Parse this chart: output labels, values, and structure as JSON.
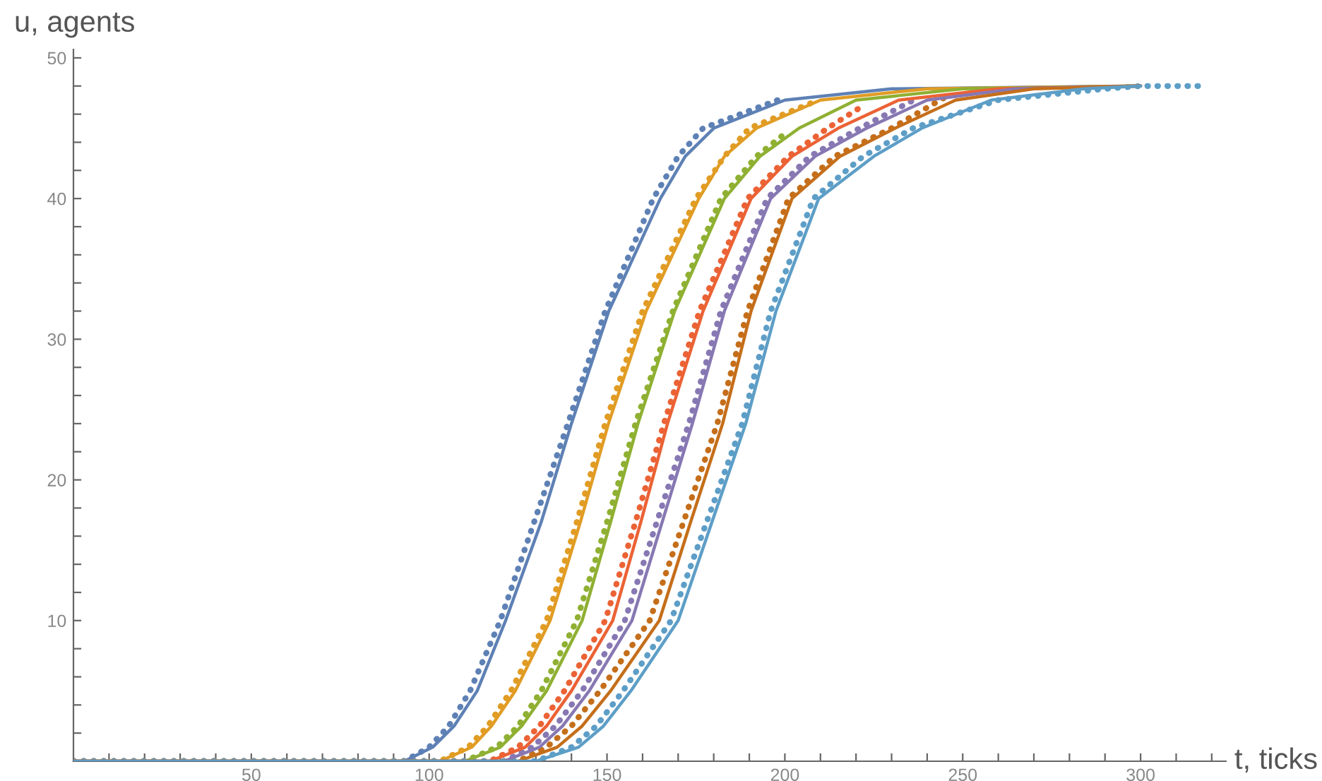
{
  "chart_data": {
    "type": "line",
    "xlabel": "t, ticks",
    "ylabel": "u, agents",
    "xlim": [
      0,
      324
    ],
    "ylim": [
      0,
      50.6
    ],
    "xticks": [
      {
        "value": 10,
        "label": null
      },
      {
        "value": 20,
        "label": null
      },
      {
        "value": 30,
        "label": null
      },
      {
        "value": 40,
        "label": null
      },
      50,
      {
        "value": 60,
        "label": null
      },
      {
        "value": 70,
        "label": null
      },
      {
        "value": 80,
        "label": null
      },
      {
        "value": 90,
        "label": null
      },
      100,
      {
        "value": 110,
        "label": null
      },
      {
        "value": 120,
        "label": null
      },
      {
        "value": 130,
        "label": null
      },
      {
        "value": 140,
        "label": null
      },
      150,
      {
        "value": 160,
        "label": null
      },
      {
        "value": 170,
        "label": null
      },
      {
        "value": 180,
        "label": null
      },
      {
        "value": 190,
        "label": null
      },
      200,
      {
        "value": 210,
        "label": null
      },
      {
        "value": 220,
        "label": null
      },
      {
        "value": 230,
        "label": null
      },
      {
        "value": 240,
        "label": null
      },
      250,
      {
        "value": 260,
        "label": null
      },
      {
        "value": 270,
        "label": null
      },
      {
        "value": 280,
        "label": null
      },
      {
        "value": 290,
        "label": null
      },
      300,
      {
        "value": 310,
        "label": null
      },
      {
        "value": 320,
        "label": null
      }
    ],
    "yticks": [
      {
        "value": 2,
        "label": null
      },
      {
        "value": 4,
        "label": null
      },
      {
        "value": 6,
        "label": null
      },
      {
        "value": 8,
        "label": null
      },
      10,
      {
        "value": 12,
        "label": null
      },
      {
        "value": 14,
        "label": null
      },
      {
        "value": 16,
        "label": null
      },
      {
        "value": 18,
        "label": null
      },
      20,
      {
        "value": 22,
        "label": null
      },
      {
        "value": 24,
        "label": null
      },
      {
        "value": 26,
        "label": null
      },
      {
        "value": 28,
        "label": null
      },
      30,
      {
        "value": 32,
        "label": null
      },
      {
        "value": 34,
        "label": null
      },
      {
        "value": 36,
        "label": null
      },
      {
        "value": 38,
        "label": null
      },
      40,
      {
        "value": 42,
        "label": null
      },
      {
        "value": 44,
        "label": null
      },
      {
        "value": 46,
        "label": null
      },
      {
        "value": 48,
        "label": null
      },
      50
    ],
    "grid": false,
    "legend": false,
    "series": [
      {
        "line_style": "dotted",
        "color": "#5e81b5",
        "x": [
          0,
          93,
          100,
          105.5,
          111.5,
          120,
          129.5,
          139,
          149.5,
          163,
          170,
          177,
          198
        ],
        "values": [
          0,
          0,
          1,
          2.5,
          5,
          10,
          17,
          24,
          32,
          40,
          43,
          45,
          47
        ]
      },
      {
        "line_style": "dotted",
        "color": "#e19c24",
        "x": [
          0,
          103,
          111,
          116.5,
          123,
          133,
          141.5,
          149.5,
          160,
          175,
          183,
          190,
          207.5
        ],
        "values": [
          0,
          0,
          1,
          2.5,
          5,
          10,
          17,
          24,
          32,
          40,
          43,
          45,
          46.8
        ]
      },
      {
        "line_style": "dotted",
        "color": "#8fb032",
        "x": [
          0,
          110,
          119,
          125,
          131.5,
          141.5,
          150,
          158,
          168.5,
          182,
          192,
          200.4
        ],
        "values": [
          0,
          0,
          1,
          2.5,
          5,
          10,
          17,
          24,
          32,
          40,
          43,
          44.7
        ]
      },
      {
        "line_style": "dotted",
        "color": "#eb6235",
        "x": [
          0,
          117,
          125,
          131,
          138,
          149.5,
          158,
          166,
          176,
          189.5,
          201,
          212,
          222
        ],
        "values": [
          0,
          0,
          1,
          2.5,
          5,
          10,
          17,
          24,
          32,
          40,
          43,
          45,
          46.6
        ]
      },
      {
        "line_style": "dotted",
        "color": "#8778b3",
        "x": [
          0,
          121,
          129,
          135.5,
          143,
          155,
          164,
          173,
          182,
          195,
          207,
          221,
          237
        ],
        "values": [
          0,
          0,
          1,
          2.5,
          5,
          10,
          17,
          24,
          32,
          40,
          43,
          45,
          47.1
        ]
      },
      {
        "line_style": "dotted",
        "color": "#c56e1a",
        "x": [
          0,
          125,
          133,
          140,
          148,
          162,
          171.5,
          181,
          189.5,
          201,
          214,
          230,
          245
        ],
        "values": [
          0,
          0,
          1,
          2.5,
          5,
          10,
          17,
          24,
          32,
          40,
          43,
          45,
          47.2
        ]
      },
      {
        "line_style": "dotted",
        "color": "#5d9ec7",
        "x": [
          0,
          130,
          140,
          147,
          154.5,
          168,
          178,
          188,
          196,
          208,
          222,
          236,
          260,
          290,
          300,
          318
        ],
        "values": [
          0,
          0,
          1,
          2.5,
          5,
          10,
          17,
          24,
          32,
          40,
          43,
          45,
          47,
          47.8,
          48,
          48
        ]
      },
      {
        "line_style": "solid",
        "color": "#5e81b5",
        "x": [
          0,
          93,
          101,
          107,
          113.5,
          121.5,
          131.5,
          140,
          150.5,
          165,
          172,
          180,
          200,
          230,
          300
        ],
        "values": [
          0,
          0,
          1,
          2.5,
          5,
          10,
          17,
          24,
          32,
          40,
          43,
          45,
          47,
          47.8,
          48
        ]
      },
      {
        "line_style": "solid",
        "color": "#e19c24",
        "x": [
          0,
          103,
          112,
          117.5,
          124.2,
          134,
          142.5,
          150.4,
          161,
          175.8,
          183,
          192,
          210,
          240,
          300
        ],
        "values": [
          0,
          0,
          1,
          2.5,
          5,
          10,
          17,
          24,
          32,
          40,
          43,
          45,
          47,
          47.8,
          48
        ]
      },
      {
        "line_style": "solid",
        "color": "#8fb032",
        "x": [
          0,
          110,
          120,
          126,
          133,
          143,
          151,
          158.7,
          169,
          183,
          193,
          204,
          220,
          250,
          300
        ],
        "values": [
          0,
          0,
          1,
          2.5,
          5,
          10,
          17,
          24,
          32,
          40,
          43,
          45,
          47,
          47.8,
          48
        ]
      },
      {
        "line_style": "solid",
        "color": "#eb6235",
        "x": [
          0,
          117,
          127,
          133,
          140,
          151.6,
          159.5,
          167,
          177,
          190.5,
          202,
          215,
          232,
          260,
          300
        ],
        "values": [
          0,
          0,
          1,
          2.5,
          5,
          10,
          17,
          24,
          32,
          40,
          43,
          45,
          47,
          47.8,
          48
        ]
      },
      {
        "line_style": "solid",
        "color": "#8778b3",
        "x": [
          0,
          121,
          131,
          137.5,
          145,
          157,
          165.5,
          174,
          183,
          196,
          208.5,
          223,
          240,
          265,
          300
        ],
        "values": [
          0,
          0,
          1,
          2.5,
          5,
          10,
          17,
          24,
          32,
          40,
          43,
          45,
          47,
          47.8,
          48
        ]
      },
      {
        "line_style": "solid",
        "color": "#c56e1a",
        "x": [
          0,
          125,
          136,
          143,
          151,
          164.7,
          173.5,
          182.5,
          190.5,
          202,
          215.5,
          231,
          248,
          270,
          300
        ],
        "values": [
          0,
          0,
          1,
          2.5,
          5,
          10,
          17,
          24,
          32,
          40,
          43,
          45,
          47,
          47.8,
          48
        ]
      },
      {
        "line_style": "solid",
        "color": "#5d9ec7",
        "x": [
          0,
          130,
          142,
          149,
          156.7,
          170,
          179.5,
          189,
          197.5,
          209.5,
          225,
          238.5,
          258,
          284,
          300
        ],
        "values": [
          0,
          0,
          1,
          2.5,
          5,
          10,
          17,
          24,
          32,
          40,
          43,
          45,
          47,
          47.8,
          48
        ]
      }
    ]
  }
}
